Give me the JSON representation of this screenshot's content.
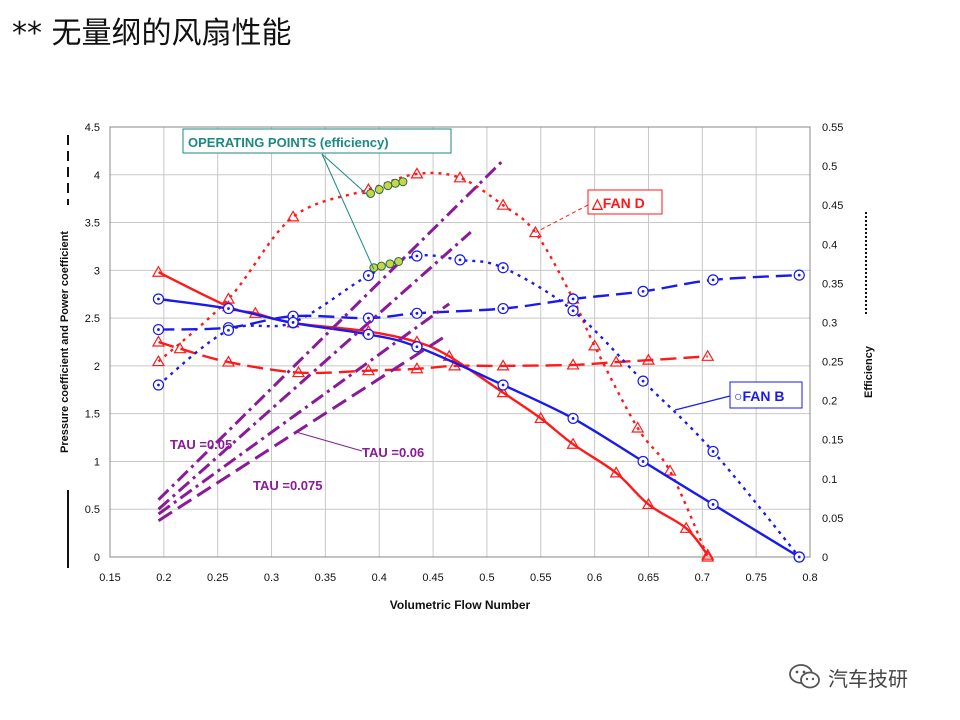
{
  "slide": {
    "title": "** 无量纲的风扇性能"
  },
  "watermark": {
    "text": "汽车技研",
    "icon": "wechat-icon"
  },
  "chart_data": {
    "type": "line",
    "xlabel": "Volumetric Flow Number",
    "ylabel_left": "Pressure coefficient and Power coefficient",
    "ylabel_right": "Efficiency",
    "xlim": [
      0.15,
      0.8
    ],
    "ylim_left": [
      0,
      4.5
    ],
    "ylim_right": [
      0,
      0.55
    ],
    "x_ticks": [
      "0.15",
      "0.2",
      "0.25",
      "0.3",
      "0.35",
      "0.4",
      "0.45",
      "0.5",
      "0.55",
      "0.6",
      "0.65",
      "0.7",
      "0.75",
      "0.8"
    ],
    "y_left_ticks": [
      "0",
      "0.5",
      "1",
      "1.5",
      "2",
      "2.5",
      "3",
      "3.5",
      "4",
      "4.5"
    ],
    "y_right_ticks": [
      "0",
      "0.05",
      "0.1",
      "0.15",
      "0.2",
      "0.25",
      "0.3",
      "0.35",
      "0.4",
      "0.45",
      "0.5",
      "0.55"
    ],
    "grid": true,
    "colors": {
      "fan_d": "#ff1a1a",
      "fan_b": "#1a1aee",
      "tau": "#8a1a9a",
      "annotation": "#1a8a80"
    },
    "series": [
      {
        "name": "",
        "fan": "D",
        "quantity": "pressure",
        "axis": "left",
        "style": "solid",
        "marker": "triangle",
        "color": "#ff1a1a",
        "x": [
          0.195,
          0.26,
          0.285,
          0.32,
          0.39,
          0.435,
          0.465,
          0.515,
          0.55,
          0.58,
          0.62,
          0.65,
          0.685,
          0.705
        ],
        "y": [
          2.98,
          2.62,
          2.55,
          2.45,
          2.36,
          2.25,
          2.1,
          1.72,
          1.45,
          1.18,
          0.88,
          0.55,
          0.3,
          0.02
        ]
      },
      {
        "name": "",
        "fan": "D",
        "quantity": "power",
        "axis": "left",
        "style": "long-dash",
        "marker": "triangle",
        "color": "#ff1a1a",
        "x": [
          0.195,
          0.215,
          0.26,
          0.325,
          0.39,
          0.435,
          0.47,
          0.515,
          0.58,
          0.62,
          0.65,
          0.705
        ],
        "y": [
          2.25,
          2.18,
          2.04,
          1.93,
          1.95,
          1.97,
          2.0,
          2.0,
          2.01,
          2.04,
          2.06,
          2.1
        ]
      },
      {
        "name": "",
        "fan": "D",
        "quantity": "efficiency",
        "axis": "right",
        "style": "dotted",
        "marker": "triangle",
        "color": "#ff1a1a",
        "x": [
          0.195,
          0.26,
          0.32,
          0.39,
          0.435,
          0.475,
          0.515,
          0.545,
          0.58,
          0.6,
          0.64,
          0.67,
          0.705
        ],
        "y": [
          0.25,
          0.33,
          0.435,
          0.47,
          0.49,
          0.485,
          0.45,
          0.415,
          0.33,
          0.27,
          0.165,
          0.11,
          0.0
        ]
      },
      {
        "name": "",
        "fan": "B",
        "quantity": "pressure",
        "axis": "left",
        "style": "solid",
        "marker": "circle",
        "color": "#1a1aee",
        "x": [
          0.195,
          0.26,
          0.32,
          0.39,
          0.435,
          0.515,
          0.58,
          0.645,
          0.71,
          0.79
        ],
        "y": [
          2.7,
          2.6,
          2.45,
          2.33,
          2.2,
          1.8,
          1.45,
          1.0,
          0.55,
          0.0
        ]
      },
      {
        "name": "",
        "fan": "B",
        "quantity": "power",
        "axis": "left",
        "style": "long-dash",
        "marker": "circle",
        "color": "#1a1aee",
        "x": [
          0.195,
          0.26,
          0.32,
          0.39,
          0.435,
          0.515,
          0.58,
          0.645,
          0.71,
          0.79
        ],
        "y": [
          2.38,
          2.4,
          2.52,
          2.5,
          2.55,
          2.6,
          2.7,
          2.78,
          2.9,
          2.95
        ]
      },
      {
        "name": "",
        "fan": "B",
        "quantity": "efficiency",
        "axis": "right",
        "style": "dotted",
        "marker": "circle",
        "color": "#1a1aee",
        "x": [
          0.195,
          0.26,
          0.32,
          0.39,
          0.435,
          0.475,
          0.515,
          0.58,
          0.645,
          0.71,
          0.79
        ],
        "y": [
          0.22,
          0.29,
          0.3,
          0.36,
          0.385,
          0.38,
          0.37,
          0.315,
          0.225,
          0.135,
          0.0
        ]
      },
      {
        "name": "",
        "group": "TAU",
        "axis": "left",
        "style": "dash-dot",
        "color": "#8a1a9a",
        "x": [
          0.195,
          0.515
        ],
        "y": [
          0.6,
          4.15
        ]
      },
      {
        "name": "",
        "group": "TAU",
        "axis": "left",
        "style": "dash-dot",
        "color": "#8a1a9a",
        "x": [
          0.195,
          0.485
        ],
        "y": [
          0.5,
          3.4
        ]
      },
      {
        "name": "",
        "group": "TAU",
        "axis": "left",
        "style": "dash-dot",
        "color": "#8a1a9a",
        "x": [
          0.195,
          0.465
        ],
        "y": [
          0.45,
          2.65
        ]
      },
      {
        "name": "",
        "group": "TAU",
        "axis": "left",
        "style": "long-dash",
        "color": "#8a1a9a",
        "x": [
          0.195,
          0.46
        ],
        "y": [
          0.38,
          2.3
        ]
      },
      {
        "name": "",
        "quantity": "operating-points",
        "axis": "right",
        "style": "none",
        "marker": "circle-filled",
        "color": "#c8d44a",
        "x": [
          0.392,
          0.4,
          0.408,
          0.415,
          0.422
        ],
        "y": [
          0.465,
          0.47,
          0.475,
          0.478,
          0.48
        ]
      },
      {
        "name": "",
        "quantity": "operating-points",
        "axis": "right",
        "style": "none",
        "marker": "circle-filled",
        "color": "#c8d44a",
        "x": [
          0.395,
          0.402,
          0.41,
          0.418
        ],
        "y": [
          0.37,
          0.372,
          0.375,
          0.378
        ]
      }
    ],
    "annotations": [
      {
        "id": "operating-points",
        "text": "OPERATING POINTS (efficiency)",
        "color": "#1a8a80",
        "boxed": true
      },
      {
        "id": "fan-d",
        "text": "△FAN D",
        "color": "#ff1a1a",
        "boxed": true
      },
      {
        "id": "fan-b",
        "text": "○FAN B",
        "color": "#1a1aee",
        "boxed": true
      },
      {
        "id": "tau-005",
        "text": "TAU =0.05",
        "color": "#8a1a9a"
      },
      {
        "id": "tau-006",
        "text": "TAU =0.06",
        "color": "#8a1a9a"
      },
      {
        "id": "tau-0075",
        "text": "TAU =0.075",
        "color": "#8a1a9a"
      }
    ]
  }
}
